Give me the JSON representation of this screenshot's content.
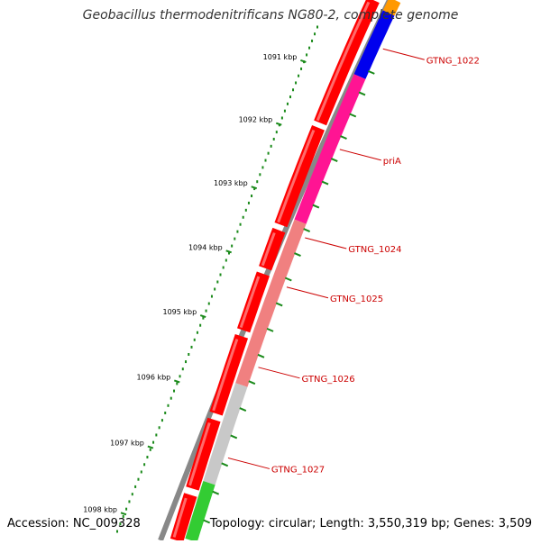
{
  "title": "Geobacillus thermodenitrificans NG80-2, complete genome",
  "accession": "Accession: NC_009328",
  "summary": "Topology: circular; Length: 3,550,319 bp; Genes: 3,509",
  "colors": {
    "backbone": "#777777",
    "forward_cds": "#ff0000",
    "tick": "#1a8a1a",
    "label": "#cc0000"
  },
  "scale_labels": [
    "1091 kbp",
    "1092 kbp",
    "1093 kbp",
    "1094 kbp",
    "1095 kbp",
    "1096 kbp",
    "1097 kbp",
    "1098 kbp"
  ],
  "gene_labels": [
    "GTNG_1022",
    "priA",
    "GTNG_1024",
    "GTNG_1025",
    "GTNG_1026",
    "GTNG_1027"
  ],
  "inner_segments": [
    {
      "color": "#ff9900"
    },
    {
      "color": "#0000ee"
    },
    {
      "color": "#ff1493"
    },
    {
      "color": "#f08080"
    },
    {
      "color": "#c8c8c8"
    },
    {
      "color": "#33cc33"
    }
  ]
}
